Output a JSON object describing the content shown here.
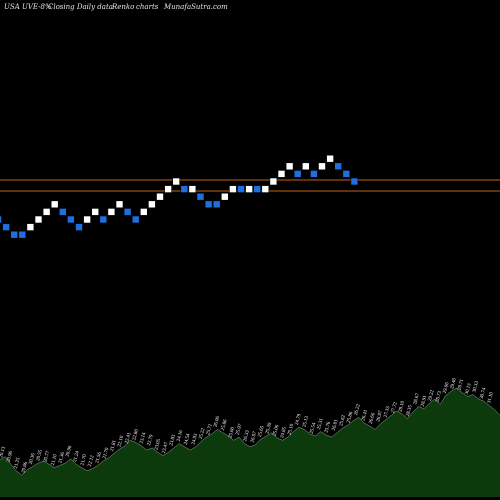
{
  "header": {
    "symbol": "USA UVE-8%",
    "series": "Closing Daily data",
    "chart_kind": "Renko",
    "charts_word": "charts",
    "site": "MunafaSutra.com"
  },
  "colors": {
    "background": "#000000",
    "up_brick": "#ffffff",
    "down_brick": "#1e6fe0",
    "hline": "#c06418",
    "volume_fill": "#0c3a0c",
    "volume_line": "#ffffff"
  },
  "chart_data": {
    "type": "renko",
    "bricks": [
      {
        "level": 0,
        "dir": "down"
      },
      {
        "level": -1,
        "dir": "down"
      },
      {
        "level": -2,
        "dir": "down"
      },
      {
        "level": -2,
        "dir": "down"
      },
      {
        "level": -1,
        "dir": "up"
      },
      {
        "level": 0,
        "dir": "up"
      },
      {
        "level": 1,
        "dir": "up"
      },
      {
        "level": 2,
        "dir": "up"
      },
      {
        "level": 1,
        "dir": "down"
      },
      {
        "level": 0,
        "dir": "down"
      },
      {
        "level": -1,
        "dir": "down"
      },
      {
        "level": 0,
        "dir": "up"
      },
      {
        "level": 1,
        "dir": "up"
      },
      {
        "level": 0,
        "dir": "down"
      },
      {
        "level": 1,
        "dir": "up"
      },
      {
        "level": 2,
        "dir": "up"
      },
      {
        "level": 1,
        "dir": "down"
      },
      {
        "level": 0,
        "dir": "down"
      },
      {
        "level": 1,
        "dir": "up"
      },
      {
        "level": 2,
        "dir": "up"
      },
      {
        "level": 3,
        "dir": "up"
      },
      {
        "level": 4,
        "dir": "up"
      },
      {
        "level": 5,
        "dir": "up"
      },
      {
        "level": 4,
        "dir": "down"
      },
      {
        "level": 4,
        "dir": "up"
      },
      {
        "level": 3,
        "dir": "down"
      },
      {
        "level": 2,
        "dir": "down"
      },
      {
        "level": 2,
        "dir": "down"
      },
      {
        "level": 3,
        "dir": "up"
      },
      {
        "level": 4,
        "dir": "up"
      },
      {
        "level": 4,
        "dir": "down"
      },
      {
        "level": 4,
        "dir": "up"
      },
      {
        "level": 4,
        "dir": "down"
      },
      {
        "level": 4,
        "dir": "up"
      },
      {
        "level": 5,
        "dir": "up"
      },
      {
        "level": 6,
        "dir": "up"
      },
      {
        "level": 7,
        "dir": "up"
      },
      {
        "level": 6,
        "dir": "down"
      },
      {
        "level": 7,
        "dir": "up"
      },
      {
        "level": 6,
        "dir": "down"
      },
      {
        "level": 7,
        "dir": "up"
      },
      {
        "level": 8,
        "dir": "up"
      },
      {
        "level": 7,
        "dir": "down"
      },
      {
        "level": 6,
        "dir": "down"
      },
      {
        "level": 5,
        "dir": "down"
      }
    ],
    "hlines": [
      {
        "label": ""
      },
      {
        "label": ""
      }
    ],
    "volume_series": [
      0.34,
      0.37,
      0.3,
      0.24,
      0.2,
      0.25,
      0.28,
      0.31,
      0.33,
      0.3,
      0.27,
      0.29,
      0.31,
      0.35,
      0.3,
      0.27,
      0.24,
      0.26,
      0.29,
      0.33,
      0.36,
      0.4,
      0.44,
      0.47,
      0.52,
      0.5,
      0.47,
      0.43,
      0.45,
      0.41,
      0.38,
      0.41,
      0.45,
      0.49,
      0.46,
      0.43,
      0.46,
      0.51,
      0.55,
      0.58,
      0.62,
      0.59,
      0.56,
      0.52,
      0.55,
      0.49,
      0.46,
      0.48,
      0.53,
      0.56,
      0.59,
      0.54,
      0.52,
      0.55,
      0.6,
      0.64,
      0.62,
      0.58,
      0.56,
      0.6,
      0.57,
      0.55,
      0.59,
      0.63,
      0.66,
      0.7,
      0.73,
      0.68,
      0.65,
      0.62,
      0.67,
      0.71,
      0.75,
      0.79,
      0.76,
      0.72,
      0.78,
      0.83,
      0.81,
      0.86,
      0.9,
      0.85,
      0.93,
      0.97,
      1.0,
      0.96,
      0.92,
      0.94,
      0.9,
      0.88,
      0.84,
      0.8,
      0.75
    ],
    "value_labels": [
      "20.13",
      "20.96",
      "21.25",
      "20.86",
      "20.36",
      "20.55",
      "20.77",
      "21.10",
      "21.36",
      "20.96",
      "21.24",
      "21.70",
      "22.12",
      "21.56",
      "21.70",
      "21.81",
      "22.10",
      "22.41",
      "22.80",
      "23.14",
      "22.79",
      "23.05",
      "23.47",
      "23.83",
      "24.16",
      "24.54",
      "24.93",
      "25.22",
      "25.71",
      "26.06",
      "25.86",
      "25.60",
      "25.97",
      "26.33",
      "26.07",
      "25.65",
      "25.39",
      "25.06",
      "24.85",
      "25.10",
      "24.79",
      "25.13",
      "25.54",
      "25.31",
      "25.76",
      "26.01",
      "25.62",
      "25.86",
      "26.22",
      "26.41",
      "26.66",
      "26.97",
      "27.33",
      "27.72",
      "28.10",
      "28.35",
      "28.67",
      "28.91",
      "29.22",
      "28.73",
      "29.06",
      "29.40",
      "29.71",
      "30.13",
      "30.33",
      "30.74",
      "31.10"
    ]
  }
}
